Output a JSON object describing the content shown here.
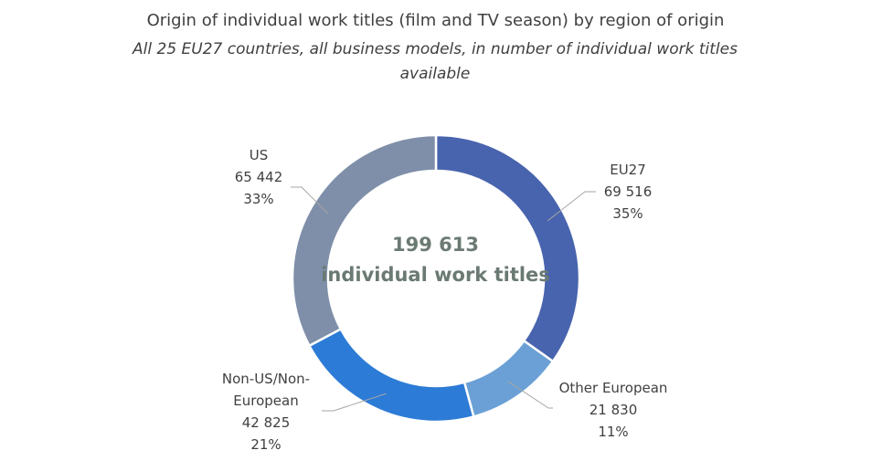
{
  "chart_data": {
    "type": "donut",
    "title": "Origin of individual work titles (film and TV season) by region of origin",
    "subtitle": "All 25 EU27 countries, all business models, in number of individual work titles available",
    "categories": [
      "EU27",
      "Other European",
      "Non-US/Non-European",
      "US"
    ],
    "values": [
      69516,
      21830,
      42825,
      65442
    ],
    "value_labels": [
      "69 516",
      "21 830",
      "42 825",
      "65 442"
    ],
    "percent_labels": [
      "35%",
      "11%",
      "21%",
      "33%"
    ],
    "colors": [
      "#4864ae",
      "#6aa0d5",
      "#2c7bd6",
      "#7f8fa9"
    ],
    "total": {
      "value": 199613,
      "label": "199 613"
    },
    "center_text": "individual work titles"
  }
}
